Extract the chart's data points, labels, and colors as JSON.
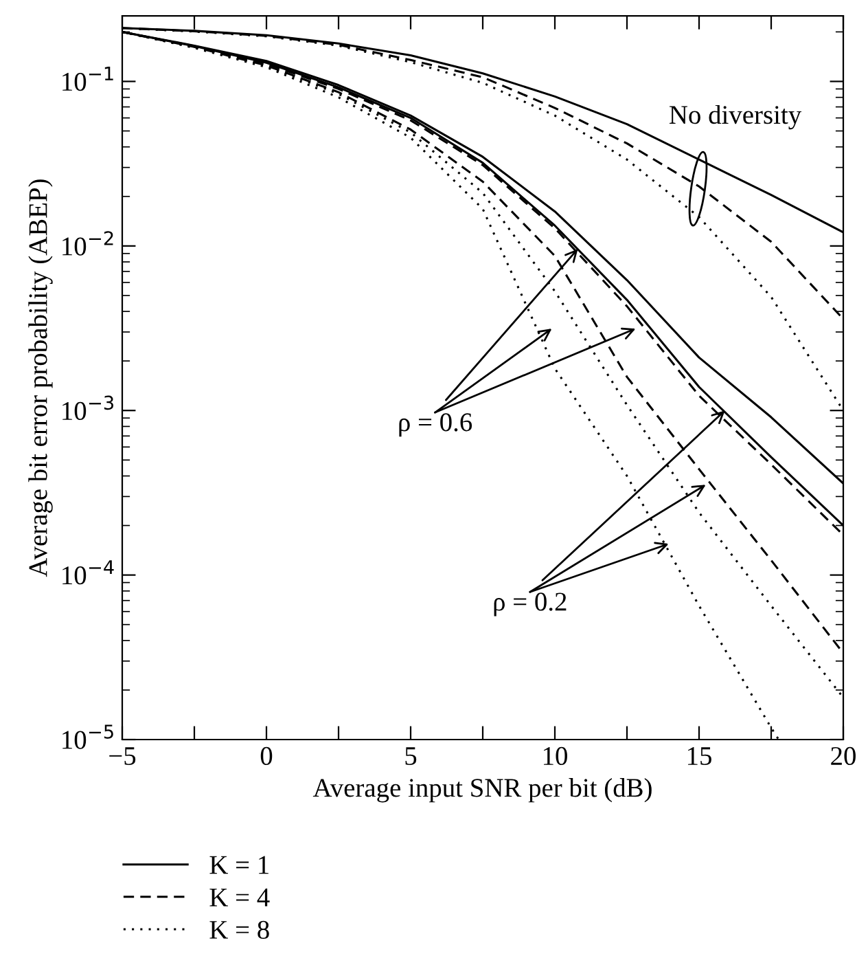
{
  "chart_data": {
    "type": "line",
    "xlabel": "Average input SNR per bit (dB)",
    "ylabel": "Average bit error probability (ABEP)",
    "x": [
      -5,
      -2.5,
      0,
      2.5,
      5,
      7.5,
      10,
      12.5,
      15,
      17.5,
      20
    ],
    "log": "y",
    "xlim": [
      -5,
      20
    ],
    "xticks": [
      {
        "value": -5,
        "label": "−5"
      },
      {
        "value": -2.5,
        "label": null
      },
      0,
      {
        "value": 2.5,
        "label": null
      },
      5,
      {
        "value": 7.5,
        "label": null
      },
      10,
      {
        "value": 12.5,
        "label": null
      },
      15,
      {
        "value": 17.5,
        "label": null
      },
      20
    ],
    "ylim": [
      1e-05,
      0.25
    ],
    "yticks": [
      {
        "value": 1e-05,
        "label": "10$^{−5}$"
      },
      {
        "value": 0.0001,
        "label": "10$^{−4}$"
      },
      {
        "value": 0.001,
        "label": "10$^{−3}$"
      },
      {
        "value": 0.01,
        "label": "10$^{−2}$"
      },
      {
        "value": 0.1,
        "label": "10$^{−1}$"
      }
    ],
    "grid": false,
    "legend": "bottom",
    "series": [
      {
        "name": "K = 1",
        "color": "#000000",
        "line_style": "solid",
        "values": [
          0.211,
          0.203,
          0.191,
          0.17,
          0.144,
          0.112,
          0.081,
          0.055,
          0.0335,
          0.0204,
          0.0121
        ]
      },
      {
        "name": "K = 4",
        "color": "#000000",
        "line_style": "dashed",
        "values": [
          0.211,
          0.202,
          0.189,
          0.167,
          0.135,
          0.106,
          0.069,
          0.042,
          0.023,
          0.0106,
          0.0036
        ]
      },
      {
        "name": "K = 8",
        "color": "#000000",
        "line_style": "dotted",
        "values": [
          0.211,
          0.201,
          0.188,
          0.165,
          0.131,
          0.098,
          0.062,
          0.0335,
          0.015,
          0.0049,
          0.001
        ]
      },
      {
        "color": "#000000",
        "line_style": "solid",
        "values": [
          0.2,
          0.165,
          0.133,
          0.095,
          0.062,
          0.0348,
          0.0162,
          0.0062,
          0.0021,
          0.00091,
          0.00036
        ]
      },
      {
        "color": "#000000",
        "line_style": "solid",
        "values": [
          0.2,
          0.164,
          0.13,
          0.092,
          0.06,
          0.032,
          0.0133,
          0.0047,
          0.00139,
          0.00052,
          0.0002
        ]
      },
      {
        "color": "#000000",
        "line_style": "dashed",
        "values": [
          0.2,
          0.163,
          0.128,
          0.09,
          0.058,
          0.031,
          0.0128,
          0.0043,
          0.00123,
          0.00047,
          0.000175
        ]
      },
      {
        "color": "#000000",
        "line_style": "dashed",
        "values": [
          0.2,
          0.162,
          0.125,
          0.086,
          0.051,
          0.0246,
          0.0087,
          0.0016,
          0.00044,
          0.000123,
          3.35e-05
        ]
      },
      {
        "color": "#000000",
        "line_style": "dotted",
        "values": [
          0.2,
          0.161,
          0.124,
          0.084,
          0.049,
          0.021,
          0.0053,
          0.00108,
          0.00024,
          6.5e-05,
          1.8e-05
        ]
      },
      {
        "color": "#000000",
        "line_style": "dotted",
        "x": [
          -5,
          -2.5,
          0,
          2.5,
          5,
          7.5,
          10,
          12.5,
          15,
          17.5,
          17.76
        ],
        "values": [
          0.2,
          0.16,
          0.122,
          0.08,
          0.0455,
          0.0168,
          0.0018,
          0.0004,
          6.5e-05,
          1.18e-05,
          1e-05
        ]
      }
    ],
    "annotations": [
      "No diversity",
      {
        "text": "ρ = 0.6",
        "x": 10.8,
        "y": 0.0096
      },
      {
        "text": "ρ = 0.2",
        "x": 15.9,
        "y": 0.001
      }
    ]
  }
}
